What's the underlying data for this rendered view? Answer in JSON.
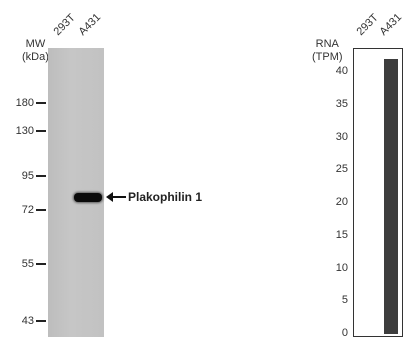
{
  "western_blot": {
    "lanes": [
      "293T",
      "A431"
    ],
    "mw_label_line1": "MW",
    "mw_label_line2": "(kDa)",
    "markers": [
      {
        "label": "180",
        "kda": 180
      },
      {
        "label": "130",
        "kda": 130
      },
      {
        "label": "95",
        "kda": 95
      },
      {
        "label": "72",
        "kda": 72
      },
      {
        "label": "55",
        "kda": 55
      },
      {
        "label": "43",
        "kda": 43
      }
    ],
    "band_label": "Plakophilin 1",
    "band_lane": "A431",
    "colors": {
      "membrane": "#c2c2c2",
      "band": "#0a0a0a"
    }
  },
  "chart_data": {
    "type": "bar",
    "categories": [
      "293T",
      "A431"
    ],
    "values": [
      0,
      42
    ],
    "ylabel_line1": "RNA",
    "ylabel_line2": "(TPM)",
    "ylim": [
      0,
      43
    ],
    "yticks": [
      0,
      5,
      10,
      15,
      20,
      25,
      30,
      35,
      40
    ],
    "grid": false,
    "legend": "none",
    "bar_color": "#3d3d3d"
  }
}
